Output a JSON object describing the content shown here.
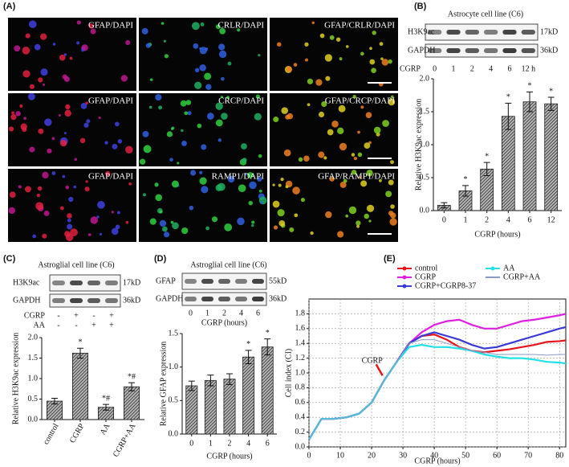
{
  "panel_labels": [
    "(A)",
    "(B)",
    "(C)",
    "(D)",
    "(E)"
  ],
  "micrographs": {
    "rows": [
      [
        "GFAP/DAPI",
        "CRLR/DAPI",
        "GFAP/CRLR/DAPI"
      ],
      [
        "GFAP/DAPI",
        "CRCP/DAPI",
        "GFAP/CRCP/DAPI"
      ],
      [
        "GFAP/DAPI",
        "RAMP1/DAPI",
        "GFAP/RAMP1/DAPI"
      ]
    ]
  },
  "blots": [
    {
      "title": "Astrocyte cell line (C6)",
      "rows": [
        {
          "name": "H3K9ac",
          "size": "17kD"
        },
        {
          "name": "GAPDH",
          "size": "36kD"
        }
      ],
      "conditions": [
        {
          "name": "CGRP",
          "lanes": [
            "0",
            "1",
            "2",
            "4",
            "6",
            "12 h"
          ]
        }
      ]
    },
    {
      "title": "Astroglial cell line (C6)",
      "rows": [
        {
          "name": "H3K9ac",
          "size": "17kD"
        },
        {
          "name": "GAPDH",
          "size": "36kD"
        }
      ],
      "conditions": [
        {
          "name": "CGRP",
          "lanes": [
            "-",
            "+",
            "-",
            "+"
          ]
        },
        {
          "name": "AA",
          "lanes": [
            "-",
            "-",
            "+",
            "+"
          ]
        }
      ]
    },
    {
      "title": "Astroglial cell line (C6)",
      "rows": [
        {
          "name": "GFAP",
          "size": "55kD"
        },
        {
          "name": "GAPDH",
          "size": "36kD"
        }
      ],
      "conditions": [
        {
          "lanes": [
            "0",
            "1",
            "2",
            "4",
            "6"
          ]
        }
      ],
      "caption": "CGRP (hours)"
    }
  ],
  "chart_data": [
    {
      "type": "bar",
      "categories": [
        "0",
        "1",
        "2",
        "4",
        "6",
        "12"
      ],
      "values": [
        0.08,
        0.3,
        0.63,
        1.43,
        1.65,
        1.62
      ],
      "errors": [
        0.04,
        0.08,
        0.1,
        0.2,
        0.15,
        0.1
      ],
      "annotations": [
        null,
        "*",
        "*",
        "*",
        "*",
        "*"
      ],
      "ylim": [
        0,
        2.0
      ],
      "yticks": [
        {
          "value": 0,
          "label": "0.0"
        },
        0.5,
        {
          "value": 1,
          "label": "1.0"
        },
        1.5,
        {
          "value": 2,
          "label": "2.0"
        }
      ],
      "ylabel": "Relative H3K9ac expression",
      "xlabel": "CGRP (hours)"
    },
    {
      "type": "bar",
      "categories": [
        "control",
        "CGRP",
        "AA",
        "CGRP+AA"
      ],
      "values": [
        0.45,
        1.62,
        0.3,
        0.8
      ],
      "errors": [
        0.07,
        0.12,
        0.07,
        0.1
      ],
      "annotations": [
        null,
        "*",
        "*#",
        "*#"
      ],
      "ylim": [
        0,
        2.0
      ],
      "yticks": [
        {
          "value": 0,
          "label": "0.0"
        },
        0.5,
        {
          "value": 1,
          "label": "1.0"
        },
        1.5,
        {
          "value": 2,
          "label": "2.0"
        }
      ],
      "ylabel": "Relative H3K9ac expression"
    },
    {
      "type": "bar",
      "categories": [
        "0",
        "1",
        "2",
        "4",
        "6"
      ],
      "values": [
        0.72,
        0.8,
        0.82,
        1.15,
        1.3
      ],
      "errors": [
        0.07,
        0.08,
        0.08,
        0.1,
        0.12
      ],
      "annotations": [
        null,
        null,
        null,
        "*",
        "*"
      ],
      "ylim": [
        0,
        1.5
      ],
      "yticks": [
        {
          "value": 0,
          "label": "0.0"
        },
        0.5,
        {
          "value": 1,
          "label": "1.0"
        },
        1.5
      ],
      "ylabel": "Relative GFAP expression",
      "xlabel": "CGRP (hours)"
    },
    {
      "type": "line",
      "x": [
        0,
        4,
        8,
        12,
        16,
        20,
        24,
        28,
        32,
        36,
        40,
        44,
        48,
        52,
        56,
        60,
        64,
        68,
        72,
        76,
        80,
        82
      ],
      "series": [
        {
          "name": "control",
          "color": "#e8141c",
          "values": [
            0.1,
            0.38,
            0.38,
            0.4,
            0.45,
            0.6,
            0.9,
            1.15,
            1.4,
            1.5,
            1.52,
            1.45,
            1.35,
            1.3,
            1.28,
            1.3,
            1.32,
            1.35,
            1.38,
            1.42,
            1.43,
            1.44
          ]
        },
        {
          "name": "CGRP",
          "color": "#e020e0",
          "values": [
            0.1,
            0.38,
            0.38,
            0.4,
            0.45,
            0.6,
            0.9,
            1.15,
            1.4,
            1.55,
            1.65,
            1.7,
            1.72,
            1.65,
            1.6,
            1.6,
            1.65,
            1.7,
            1.72,
            1.75,
            1.78,
            1.8
          ]
        },
        {
          "name": "CGRP+CGRP8-37",
          "color": "#3a3ad8",
          "values": [
            0.1,
            0.38,
            0.38,
            0.4,
            0.45,
            0.6,
            0.9,
            1.15,
            1.4,
            1.5,
            1.55,
            1.5,
            1.45,
            1.38,
            1.33,
            1.35,
            1.4,
            1.45,
            1.5,
            1.55,
            1.6,
            1.62
          ]
        },
        {
          "name": "AA",
          "color": "#22e0e8",
          "values": [
            0.1,
            0.38,
            0.38,
            0.4,
            0.45,
            0.6,
            0.9,
            1.15,
            1.35,
            1.38,
            1.35,
            1.35,
            1.33,
            1.3,
            1.25,
            1.22,
            1.2,
            1.2,
            1.18,
            1.15,
            1.14,
            1.13
          ]
        },
        {
          "name": "CGRP+AA",
          "color": "#8a9ac8",
          "values": [
            0.1,
            0.38,
            0.38,
            0.4,
            0.45,
            0.6,
            0.9,
            1.15,
            1.4,
            1.45,
            1.45,
            1.4,
            1.35,
            1.3,
            1.28,
            1.25,
            1.25,
            1.25,
            1.25,
            1.24,
            1.25,
            1.25
          ]
        }
      ],
      "xlim": [
        0,
        82
      ],
      "xticks": [
        0,
        10,
        20,
        30,
        40,
        50,
        60,
        70,
        80
      ],
      "ylim": [
        0,
        2.0
      ],
      "yticks": [
        {
          "value": 0,
          "label": "0.0"
        },
        0.2,
        0.4,
        0.6,
        0.8,
        {
          "value": 1,
          "label": "1.0"
        },
        1.2,
        1.4,
        1.6,
        1.8
      ],
      "grid": true,
      "annotation": "CGRP",
      "ylabel": "Cell index (CI)",
      "xlabel": "CGRP (hours)"
    }
  ]
}
